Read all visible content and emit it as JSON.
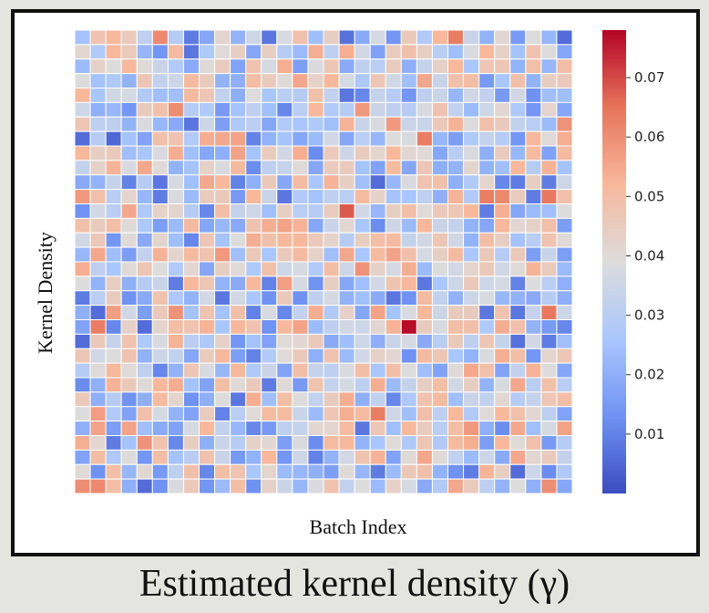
{
  "caption": "Estimated kernel density (γ)",
  "chart_data": {
    "type": "heatmap",
    "title": "",
    "xlabel": "Batch Index",
    "ylabel": "Kernel Density",
    "rows": 32,
    "cols": 32,
    "colorbar": {
      "min": 0.0,
      "max": 0.078,
      "ticks": [
        0.01,
        0.02,
        0.03,
        0.04,
        0.05,
        0.06,
        0.07
      ],
      "tick_labels": [
        "0.01",
        "0.02",
        "0.03",
        "0.04",
        "0.05",
        "0.06",
        "0.07"
      ],
      "colormap": "coolwarm",
      "stops": [
        "#3b4cc0",
        "#6f92f3",
        "#aac7fd",
        "#dddcdc",
        "#f7b89c",
        "#e7745b",
        "#b40426"
      ]
    },
    "grid_lines": "white",
    "values": [
      [
        0.025,
        0.048,
        0.052,
        0.045,
        0.031,
        0.061,
        0.029,
        0.009,
        0.018,
        0.042,
        0.021,
        0.035,
        0.008,
        0.038,
        0.049,
        0.024,
        0.044,
        0.007,
        0.019,
        0.037,
        0.014,
        0.046,
        0.028,
        0.052,
        0.063,
        0.034,
        0.021,
        0.041,
        0.015,
        0.039,
        0.022,
        0.006
      ],
      [
        0.041,
        0.028,
        0.052,
        0.046,
        0.022,
        0.014,
        0.051,
        0.008,
        0.027,
        0.04,
        0.044,
        0.018,
        0.044,
        0.029,
        0.023,
        0.054,
        0.031,
        0.054,
        0.036,
        0.017,
        0.045,
        0.049,
        0.044,
        0.03,
        0.024,
        0.038,
        0.052,
        0.043,
        0.025,
        0.048,
        0.039,
        0.018
      ],
      [
        0.023,
        0.043,
        0.039,
        0.052,
        0.04,
        0.034,
        0.028,
        0.019,
        0.04,
        0.045,
        0.017,
        0.048,
        0.037,
        0.054,
        0.016,
        0.038,
        0.047,
        0.019,
        0.031,
        0.03,
        0.045,
        0.02,
        0.033,
        0.043,
        0.052,
        0.026,
        0.047,
        0.047,
        0.021,
        0.049,
        0.022,
        0.05
      ],
      [
        0.039,
        0.025,
        0.027,
        0.021,
        0.047,
        0.032,
        0.035,
        0.051,
        0.045,
        0.021,
        0.02,
        0.05,
        0.045,
        0.04,
        0.055,
        0.043,
        0.052,
        0.037,
        0.027,
        0.047,
        0.036,
        0.024,
        0.055,
        0.034,
        0.049,
        0.05,
        0.015,
        0.026,
        0.049,
        0.021,
        0.044,
        0.046
      ],
      [
        0.052,
        0.026,
        0.036,
        0.037,
        0.028,
        0.024,
        0.024,
        0.051,
        0.047,
        0.032,
        0.02,
        0.039,
        0.026,
        0.03,
        0.029,
        0.049,
        0.032,
        0.008,
        0.011,
        0.033,
        0.029,
        0.014,
        0.031,
        0.034,
        0.022,
        0.036,
        0.032,
        0.015,
        0.036,
        0.013,
        0.024,
        0.024
      ],
      [
        0.035,
        0.02,
        0.022,
        0.014,
        0.045,
        0.049,
        0.06,
        0.029,
        0.028,
        0.015,
        0.025,
        0.031,
        0.024,
        0.011,
        0.03,
        0.052,
        0.028,
        0.029,
        0.058,
        0.034,
        0.031,
        0.029,
        0.038,
        0.048,
        0.032,
        0.023,
        0.035,
        0.041,
        0.027,
        0.014,
        0.042,
        0.018
      ],
      [
        0.047,
        0.031,
        0.031,
        0.021,
        0.038,
        0.022,
        0.019,
        0.008,
        0.035,
        0.016,
        0.027,
        0.03,
        0.018,
        0.028,
        0.026,
        0.027,
        0.024,
        0.053,
        0.034,
        0.038,
        0.058,
        0.034,
        0.034,
        0.046,
        0.053,
        0.039,
        0.049,
        0.046,
        0.032,
        0.03,
        0.023,
        0.059
      ],
      [
        0.006,
        0.029,
        0.005,
        0.025,
        0.017,
        0.049,
        0.048,
        0.028,
        0.054,
        0.055,
        0.056,
        0.01,
        0.021,
        0.025,
        0.018,
        0.023,
        0.036,
        0.018,
        0.03,
        0.022,
        0.039,
        0.038,
        0.063,
        0.022,
        0.016,
        0.028,
        0.033,
        0.029,
        0.014,
        0.052,
        0.04,
        0.054
      ],
      [
        0.052,
        0.044,
        0.046,
        0.024,
        0.026,
        0.038,
        0.054,
        0.024,
        0.018,
        0.02,
        0.056,
        0.025,
        0.045,
        0.036,
        0.054,
        0.012,
        0.046,
        0.035,
        0.045,
        0.042,
        0.052,
        0.041,
        0.04,
        0.018,
        0.03,
        0.038,
        0.02,
        0.045,
        0.022,
        0.051,
        0.017,
        0.051
      ],
      [
        0.033,
        0.043,
        0.053,
        0.038,
        0.055,
        0.04,
        0.021,
        0.025,
        0.043,
        0.038,
        0.051,
        0.012,
        0.031,
        0.033,
        0.04,
        0.018,
        0.045,
        0.045,
        0.025,
        0.017,
        0.051,
        0.018,
        0.047,
        0.02,
        0.021,
        0.042,
        0.021,
        0.024,
        0.052,
        0.029,
        0.053,
        0.025
      ],
      [
        0.019,
        0.021,
        0.033,
        0.01,
        0.029,
        0.008,
        0.037,
        0.024,
        0.055,
        0.052,
        0.01,
        0.02,
        0.046,
        0.018,
        0.051,
        0.026,
        0.053,
        0.044,
        0.024,
        0.006,
        0.022,
        0.038,
        0.048,
        0.049,
        0.02,
        0.028,
        0.042,
        0.011,
        0.009,
        0.044,
        0.009,
        0.035
      ],
      [
        0.058,
        0.049,
        0.03,
        0.042,
        0.022,
        0.009,
        0.038,
        0.023,
        0.045,
        0.046,
        0.015,
        0.052,
        0.034,
        0.008,
        0.028,
        0.025,
        0.031,
        0.03,
        0.051,
        0.043,
        0.025,
        0.026,
        0.031,
        0.02,
        0.053,
        0.028,
        0.063,
        0.061,
        0.045,
        0.009,
        0.064,
        0.049
      ],
      [
        0.013,
        0.036,
        0.03,
        0.055,
        0.027,
        0.043,
        0.042,
        0.029,
        0.011,
        0.05,
        0.033,
        0.035,
        0.024,
        0.044,
        0.03,
        0.029,
        0.045,
        0.068,
        0.036,
        0.022,
        0.044,
        0.05,
        0.04,
        0.046,
        0.047,
        0.052,
        0.009,
        0.054,
        0.018,
        0.023,
        0.024,
        0.039
      ],
      [
        0.049,
        0.045,
        0.05,
        0.04,
        0.027,
        0.016,
        0.023,
        0.051,
        0.018,
        0.022,
        0.019,
        0.048,
        0.054,
        0.056,
        0.053,
        0.018,
        0.034,
        0.041,
        0.026,
        0.012,
        0.035,
        0.023,
        0.052,
        0.034,
        0.033,
        0.021,
        0.018,
        0.052,
        0.041,
        0.043,
        0.049,
        0.016
      ],
      [
        0.036,
        0.046,
        0.014,
        0.04,
        0.019,
        0.042,
        0.024,
        0.011,
        0.047,
        0.025,
        0.039,
        0.054,
        0.049,
        0.052,
        0.052,
        0.046,
        0.042,
        0.029,
        0.044,
        0.05,
        0.051,
        0.033,
        0.036,
        0.047,
        0.036,
        0.021,
        0.05,
        0.044,
        0.025,
        0.03,
        0.048,
        0.04
      ],
      [
        0.022,
        0.055,
        0.024,
        0.016,
        0.032,
        0.053,
        0.042,
        0.051,
        0.048,
        0.058,
        0.024,
        0.046,
        0.026,
        0.046,
        0.051,
        0.043,
        0.024,
        0.055,
        0.026,
        0.051,
        0.056,
        0.049,
        0.037,
        0.044,
        0.051,
        0.026,
        0.046,
        0.029,
        0.046,
        0.016,
        0.034,
        0.016
      ],
      [
        0.054,
        0.031,
        0.026,
        0.04,
        0.047,
        0.039,
        0.028,
        0.041,
        0.018,
        0.044,
        0.04,
        0.027,
        0.049,
        0.035,
        0.037,
        0.028,
        0.05,
        0.035,
        0.059,
        0.043,
        0.037,
        0.054,
        0.023,
        0.039,
        0.036,
        0.042,
        0.046,
        0.036,
        0.04,
        0.053,
        0.045,
        0.023
      ],
      [
        0.039,
        0.021,
        0.044,
        0.02,
        0.029,
        0.034,
        0.009,
        0.052,
        0.047,
        0.021,
        0.019,
        0.052,
        0.01,
        0.057,
        0.037,
        0.013,
        0.044,
        0.018,
        0.024,
        0.036,
        0.048,
        0.052,
        0.008,
        0.026,
        0.035,
        0.046,
        0.035,
        0.037,
        0.01,
        0.039,
        0.03,
        0.02
      ],
      [
        0.009,
        0.03,
        0.045,
        0.013,
        0.019,
        0.048,
        0.027,
        0.021,
        0.036,
        0.008,
        0.036,
        0.026,
        0.013,
        0.046,
        0.013,
        0.031,
        0.037,
        0.021,
        0.024,
        0.019,
        0.008,
        0.013,
        0.051,
        0.032,
        0.021,
        0.035,
        0.038,
        0.022,
        0.021,
        0.019,
        0.029,
        0.02
      ],
      [
        0.02,
        0.006,
        0.057,
        0.036,
        0.016,
        0.046,
        0.059,
        0.025,
        0.048,
        0.025,
        0.049,
        0.01,
        0.038,
        0.011,
        0.032,
        0.054,
        0.028,
        0.043,
        0.018,
        0.056,
        0.025,
        0.038,
        0.052,
        0.035,
        0.045,
        0.045,
        0.008,
        0.048,
        0.008,
        0.033,
        0.064,
        0.035
      ],
      [
        0.017,
        0.063,
        0.011,
        0.043,
        0.006,
        0.042,
        0.05,
        0.048,
        0.053,
        0.026,
        0.052,
        0.048,
        0.013,
        0.052,
        0.056,
        0.023,
        0.031,
        0.036,
        0.035,
        0.041,
        0.053,
        0.077,
        0.045,
        0.038,
        0.05,
        0.049,
        0.027,
        0.054,
        0.049,
        0.021,
        0.015,
        0.011
      ],
      [
        0.006,
        0.046,
        0.033,
        0.048,
        0.027,
        0.038,
        0.053,
        0.03,
        0.027,
        0.043,
        0.014,
        0.025,
        0.017,
        0.04,
        0.041,
        0.046,
        0.019,
        0.024,
        0.035,
        0.02,
        0.034,
        0.037,
        0.019,
        0.03,
        0.046,
        0.031,
        0.047,
        0.033,
        0.007,
        0.036,
        0.009,
        0.024
      ],
      [
        0.047,
        0.036,
        0.039,
        0.048,
        0.021,
        0.035,
        0.032,
        0.018,
        0.045,
        0.052,
        0.016,
        0.01,
        0.028,
        0.04,
        0.046,
        0.02,
        0.048,
        0.023,
        0.036,
        0.043,
        0.041,
        0.013,
        0.051,
        0.047,
        0.026,
        0.021,
        0.038,
        0.054,
        0.05,
        0.014,
        0.042,
        0.047
      ],
      [
        0.029,
        0.04,
        0.052,
        0.04,
        0.031,
        0.011,
        0.021,
        0.047,
        0.038,
        0.022,
        0.052,
        0.027,
        0.034,
        0.017,
        0.05,
        0.033,
        0.031,
        0.038,
        0.05,
        0.026,
        0.05,
        0.039,
        0.024,
        0.017,
        0.04,
        0.055,
        0.049,
        0.017,
        0.032,
        0.053,
        0.039,
        0.018
      ],
      [
        0.012,
        0.02,
        0.053,
        0.046,
        0.04,
        0.052,
        0.054,
        0.025,
        0.017,
        0.05,
        0.04,
        0.046,
        0.009,
        0.04,
        0.015,
        0.048,
        0.033,
        0.037,
        0.031,
        0.054,
        0.023,
        0.033,
        0.044,
        0.05,
        0.036,
        0.044,
        0.021,
        0.038,
        0.055,
        0.03,
        0.049,
        0.03
      ],
      [
        0.046,
        0.02,
        0.029,
        0.013,
        0.02,
        0.051,
        0.042,
        0.013,
        0.02,
        0.039,
        0.008,
        0.054,
        0.024,
        0.05,
        0.039,
        0.032,
        0.045,
        0.054,
        0.02,
        0.032,
        0.011,
        0.027,
        0.048,
        0.051,
        0.024,
        0.034,
        0.032,
        0.041,
        0.029,
        0.033,
        0.047,
        0.05
      ],
      [
        0.039,
        0.057,
        0.028,
        0.017,
        0.049,
        0.037,
        0.021,
        0.017,
        0.045,
        0.01,
        0.03,
        0.04,
        0.051,
        0.051,
        0.034,
        0.023,
        0.047,
        0.054,
        0.051,
        0.063,
        0.035,
        0.024,
        0.049,
        0.031,
        0.052,
        0.028,
        0.04,
        0.052,
        0.049,
        0.041,
        0.031,
        0.017
      ],
      [
        0.02,
        0.056,
        0.016,
        0.056,
        0.024,
        0.019,
        0.017,
        0.037,
        0.052,
        0.032,
        0.022,
        0.011,
        0.015,
        0.031,
        0.033,
        0.041,
        0.042,
        0.051,
        0.008,
        0.047,
        0.024,
        0.052,
        0.045,
        0.03,
        0.05,
        0.058,
        0.02,
        0.012,
        0.055,
        0.024,
        0.037,
        0.056
      ],
      [
        0.054,
        0.041,
        0.009,
        0.025,
        0.059,
        0.048,
        0.011,
        0.044,
        0.02,
        0.034,
        0.029,
        0.043,
        0.041,
        0.016,
        0.038,
        0.012,
        0.051,
        0.052,
        0.021,
        0.026,
        0.04,
        0.027,
        0.047,
        0.028,
        0.051,
        0.054,
        0.016,
        0.052,
        0.04,
        0.049,
        0.015,
        0.029
      ],
      [
        0.017,
        0.05,
        0.027,
        0.039,
        0.014,
        0.05,
        0.025,
        0.03,
        0.048,
        0.034,
        0.015,
        0.021,
        0.052,
        0.014,
        0.035,
        0.01,
        0.021,
        0.036,
        0.048,
        0.053,
        0.017,
        0.04,
        0.055,
        0.04,
        0.032,
        0.023,
        0.035,
        0.019,
        0.055,
        0.041,
        0.045,
        0.033
      ],
      [
        0.04,
        0.013,
        0.05,
        0.022,
        0.041,
        0.015,
        0.031,
        0.049,
        0.011,
        0.05,
        0.048,
        0.026,
        0.042,
        0.023,
        0.022,
        0.02,
        0.016,
        0.04,
        0.022,
        0.009,
        0.023,
        0.046,
        0.049,
        0.021,
        0.013,
        0.009,
        0.053,
        0.044,
        0.006,
        0.035,
        0.012,
        0.027
      ],
      [
        0.06,
        0.061,
        0.05,
        0.02,
        0.006,
        0.013,
        0.038,
        0.046,
        0.014,
        0.023,
        0.05,
        0.013,
        0.043,
        0.034,
        0.022,
        0.038,
        0.048,
        0.032,
        0.039,
        0.023,
        0.043,
        0.037,
        0.019,
        0.028,
        0.055,
        0.045,
        0.031,
        0.021,
        0.039,
        0.02,
        0.06,
        0.018
      ]
    ]
  }
}
